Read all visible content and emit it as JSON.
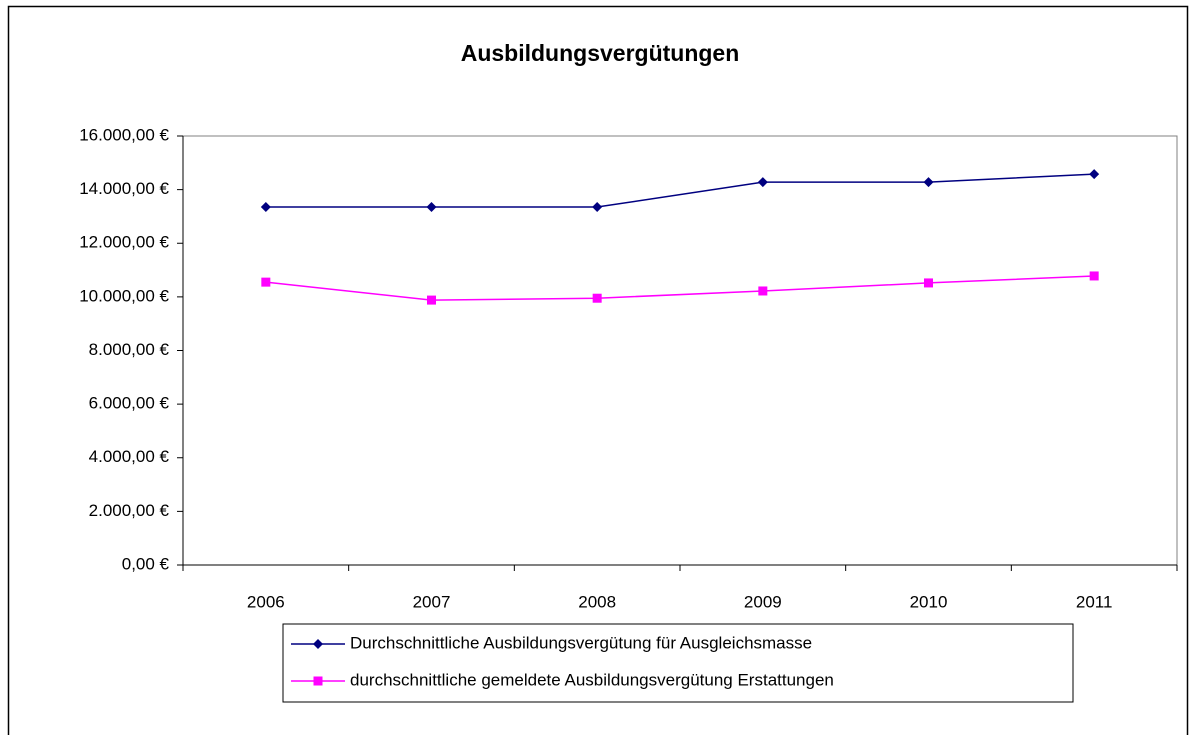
{
  "chart_data": {
    "type": "line",
    "title": "Ausbildungsvergütungen",
    "categories": [
      "2006",
      "2007",
      "2008",
      "2009",
      "2010",
      "2011"
    ],
    "series": [
      {
        "name": "Durchschnittliche Ausbildungsvergütung für Ausgleichsmasse",
        "color": "#000080",
        "marker": "diamond",
        "values": [
          13350,
          13350,
          13350,
          14280,
          14280,
          14580
        ]
      },
      {
        "name": "durchschnittliche gemeldete Ausbildungsvergütung Erstattungen",
        "color": "#ff00ff",
        "marker": "square",
        "values": [
          10550,
          9880,
          9950,
          10220,
          10520,
          10780
        ]
      }
    ],
    "ylim": [
      0,
      16000
    ],
    "yticks": [
      {
        "value": 0,
        "label": "0,00 €"
      },
      {
        "value": 2000,
        "label": "2.000,00 €"
      },
      {
        "value": 4000,
        "label": "4.000,00 €"
      },
      {
        "value": 6000,
        "label": "6.000,00 €"
      },
      {
        "value": 8000,
        "label": "8.000,00 €"
      },
      {
        "value": 10000,
        "label": "10.000,00 €"
      },
      {
        "value": 12000,
        "label": "12.000,00 €"
      },
      {
        "value": 14000,
        "label": "14.000,00 €"
      },
      {
        "value": 16000,
        "label": "16.000,00 €"
      }
    ],
    "grid": false,
    "legend": "bottom"
  }
}
